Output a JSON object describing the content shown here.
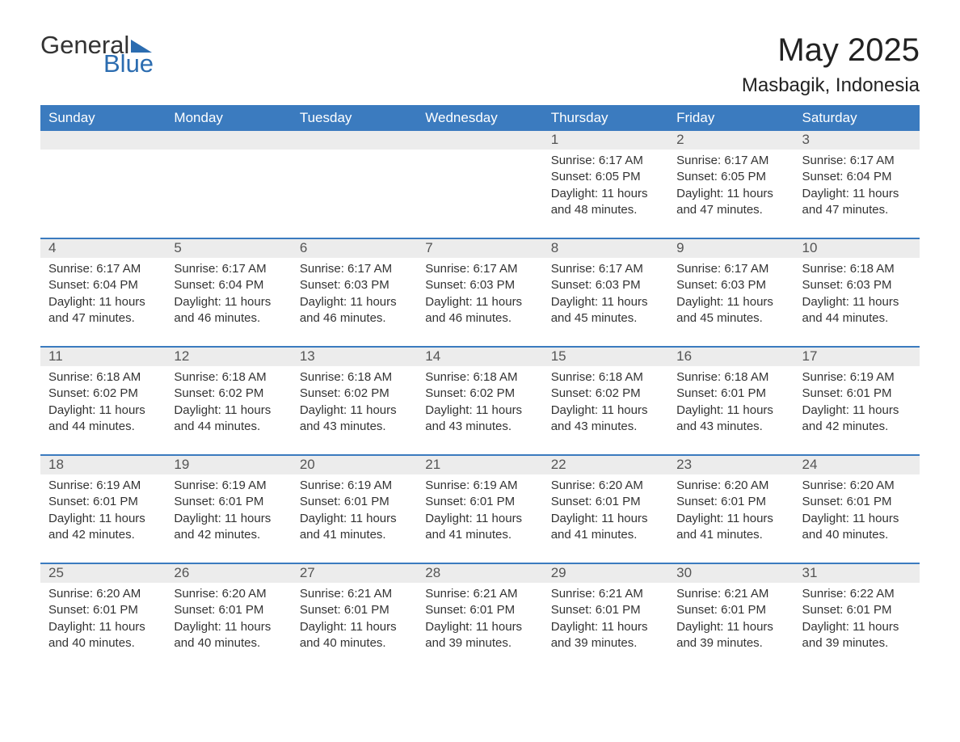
{
  "logo": {
    "general": "General",
    "blue": "Blue"
  },
  "title": {
    "month": "May 2025",
    "location": "Masbagik, Indonesia"
  },
  "colors": {
    "header_bg": "#3b7bbf",
    "header_text": "#ffffff",
    "daynum_bg": "#ececec",
    "daynum_text": "#555555",
    "body_text": "#333333",
    "accent": "#2b6cb0",
    "page_bg": "#ffffff"
  },
  "typography": {
    "title_fontsize": 40,
    "location_fontsize": 24,
    "dow_fontsize": 17,
    "daynum_fontsize": 17,
    "cell_fontsize": 15
  },
  "dow": [
    "Sunday",
    "Monday",
    "Tuesday",
    "Wednesday",
    "Thursday",
    "Friday",
    "Saturday"
  ],
  "weeks": [
    [
      null,
      null,
      null,
      null,
      {
        "n": "1",
        "sunrise": "6:17 AM",
        "sunset": "6:05 PM",
        "dl": "11 hours and 48 minutes."
      },
      {
        "n": "2",
        "sunrise": "6:17 AM",
        "sunset": "6:05 PM",
        "dl": "11 hours and 47 minutes."
      },
      {
        "n": "3",
        "sunrise": "6:17 AM",
        "sunset": "6:04 PM",
        "dl": "11 hours and 47 minutes."
      }
    ],
    [
      {
        "n": "4",
        "sunrise": "6:17 AM",
        "sunset": "6:04 PM",
        "dl": "11 hours and 47 minutes."
      },
      {
        "n": "5",
        "sunrise": "6:17 AM",
        "sunset": "6:04 PM",
        "dl": "11 hours and 46 minutes."
      },
      {
        "n": "6",
        "sunrise": "6:17 AM",
        "sunset": "6:03 PM",
        "dl": "11 hours and 46 minutes."
      },
      {
        "n": "7",
        "sunrise": "6:17 AM",
        "sunset": "6:03 PM",
        "dl": "11 hours and 46 minutes."
      },
      {
        "n": "8",
        "sunrise": "6:17 AM",
        "sunset": "6:03 PM",
        "dl": "11 hours and 45 minutes."
      },
      {
        "n": "9",
        "sunrise": "6:17 AM",
        "sunset": "6:03 PM",
        "dl": "11 hours and 45 minutes."
      },
      {
        "n": "10",
        "sunrise": "6:18 AM",
        "sunset": "6:03 PM",
        "dl": "11 hours and 44 minutes."
      }
    ],
    [
      {
        "n": "11",
        "sunrise": "6:18 AM",
        "sunset": "6:02 PM",
        "dl": "11 hours and 44 minutes."
      },
      {
        "n": "12",
        "sunrise": "6:18 AM",
        "sunset": "6:02 PM",
        "dl": "11 hours and 44 minutes."
      },
      {
        "n": "13",
        "sunrise": "6:18 AM",
        "sunset": "6:02 PM",
        "dl": "11 hours and 43 minutes."
      },
      {
        "n": "14",
        "sunrise": "6:18 AM",
        "sunset": "6:02 PM",
        "dl": "11 hours and 43 minutes."
      },
      {
        "n": "15",
        "sunrise": "6:18 AM",
        "sunset": "6:02 PM",
        "dl": "11 hours and 43 minutes."
      },
      {
        "n": "16",
        "sunrise": "6:18 AM",
        "sunset": "6:01 PM",
        "dl": "11 hours and 43 minutes."
      },
      {
        "n": "17",
        "sunrise": "6:19 AM",
        "sunset": "6:01 PM",
        "dl": "11 hours and 42 minutes."
      }
    ],
    [
      {
        "n": "18",
        "sunrise": "6:19 AM",
        "sunset": "6:01 PM",
        "dl": "11 hours and 42 minutes."
      },
      {
        "n": "19",
        "sunrise": "6:19 AM",
        "sunset": "6:01 PM",
        "dl": "11 hours and 42 minutes."
      },
      {
        "n": "20",
        "sunrise": "6:19 AM",
        "sunset": "6:01 PM",
        "dl": "11 hours and 41 minutes."
      },
      {
        "n": "21",
        "sunrise": "6:19 AM",
        "sunset": "6:01 PM",
        "dl": "11 hours and 41 minutes."
      },
      {
        "n": "22",
        "sunrise": "6:20 AM",
        "sunset": "6:01 PM",
        "dl": "11 hours and 41 minutes."
      },
      {
        "n": "23",
        "sunrise": "6:20 AM",
        "sunset": "6:01 PM",
        "dl": "11 hours and 41 minutes."
      },
      {
        "n": "24",
        "sunrise": "6:20 AM",
        "sunset": "6:01 PM",
        "dl": "11 hours and 40 minutes."
      }
    ],
    [
      {
        "n": "25",
        "sunrise": "6:20 AM",
        "sunset": "6:01 PM",
        "dl": "11 hours and 40 minutes."
      },
      {
        "n": "26",
        "sunrise": "6:20 AM",
        "sunset": "6:01 PM",
        "dl": "11 hours and 40 minutes."
      },
      {
        "n": "27",
        "sunrise": "6:21 AM",
        "sunset": "6:01 PM",
        "dl": "11 hours and 40 minutes."
      },
      {
        "n": "28",
        "sunrise": "6:21 AM",
        "sunset": "6:01 PM",
        "dl": "11 hours and 39 minutes."
      },
      {
        "n": "29",
        "sunrise": "6:21 AM",
        "sunset": "6:01 PM",
        "dl": "11 hours and 39 minutes."
      },
      {
        "n": "30",
        "sunrise": "6:21 AM",
        "sunset": "6:01 PM",
        "dl": "11 hours and 39 minutes."
      },
      {
        "n": "31",
        "sunrise": "6:22 AM",
        "sunset": "6:01 PM",
        "dl": "11 hours and 39 minutes."
      }
    ]
  ],
  "labels": {
    "sunrise": "Sunrise: ",
    "sunset": "Sunset: ",
    "daylight": "Daylight: "
  }
}
